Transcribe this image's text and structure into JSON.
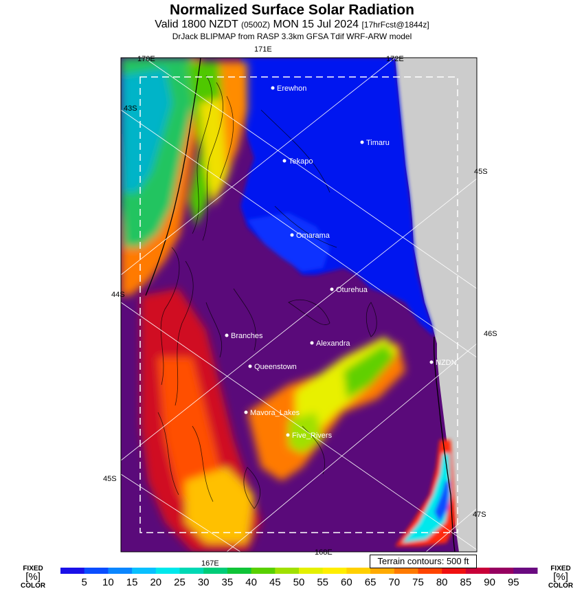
{
  "title": "Normalized Surface Solar Radiation",
  "subtitle": {
    "valid": "Valid 1800 NZDT",
    "utc": "(0500Z)",
    "date": "MON 15 Jul 2024",
    "forecast": "[17hrFcst@1844z]"
  },
  "model_line": "DrJack BLIPMAP from RASP 3.3km GFSA Tdif WRF-ARW model",
  "graticule_labels": [
    "170E",
    "171E",
    "172E",
    "167E",
    "168E",
    "43S",
    "44S",
    "45S",
    "45S",
    "46S",
    "47S"
  ],
  "towns": [
    "Erewhon",
    "Timaru",
    "Tekapo",
    "Omarama",
    "Oturehua",
    "Branches",
    "Alexandra",
    "Queenstown",
    "NZDN",
    "Mavora_Lakes",
    "Five_Rivers"
  ],
  "terrain_note": "Terrain contours: 500 ft",
  "legend": {
    "fixed_label": "FIXED",
    "unit": "[%]",
    "color_label": "COLOR",
    "ticks": [
      "5",
      "10",
      "15",
      "20",
      "25",
      "30",
      "35",
      "40",
      "45",
      "50",
      "55",
      "60",
      "65",
      "70",
      "75",
      "80",
      "85",
      "90",
      "95"
    ],
    "colors": [
      "#1a10e8",
      "#0a4dff",
      "#0a86ff",
      "#08c0ff",
      "#00e8ec",
      "#00d8b4",
      "#00cc78",
      "#10c438",
      "#58d000",
      "#a0e000",
      "#e4f000",
      "#ffee00",
      "#ffd000",
      "#ffaa00",
      "#ff7a00",
      "#ff4400",
      "#f01010",
      "#c80038",
      "#960060",
      "#6a0a80"
    ]
  },
  "colors": {
    "no_data": "#cccccc",
    "low": "#0018f0",
    "high": "#5a0a7a"
  }
}
